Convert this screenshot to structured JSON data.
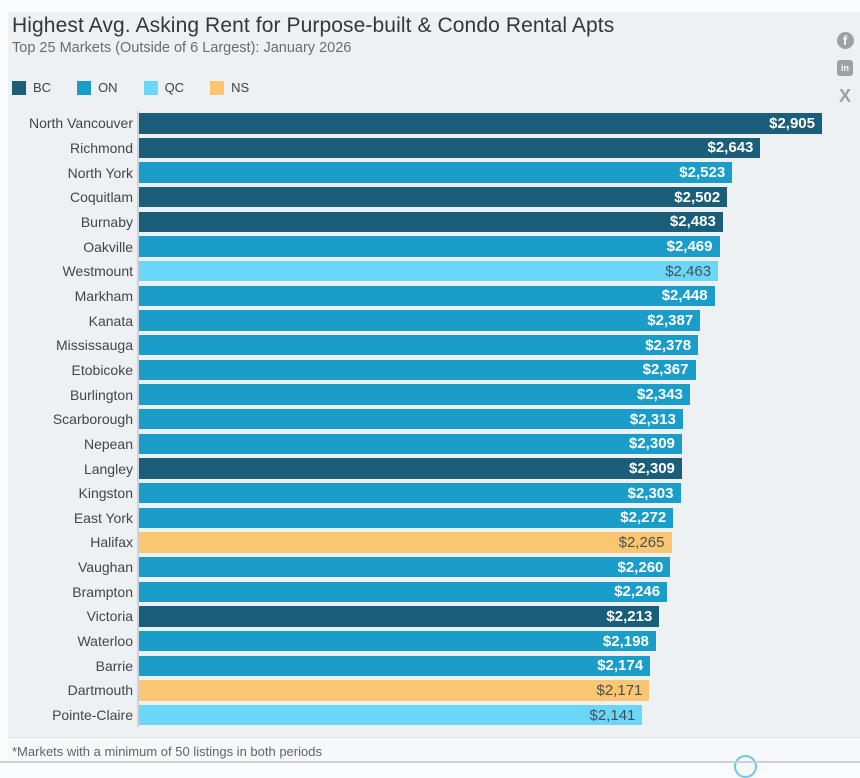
{
  "header": {
    "title": "Highest Avg. Asking Rent for Purpose-built & Condo Rental Apts",
    "subtitle": "Top 25 Markets (Outside of 6 Largest): January 2026"
  },
  "legend": [
    {
      "label": "BC",
      "color": "#1a5e79"
    },
    {
      "label": "ON",
      "color": "#1b9dca"
    },
    {
      "label": "QC",
      "color": "#6bd7f8"
    },
    {
      "label": "NS",
      "color": "#fac672"
    }
  ],
  "social": {
    "facebook": "f",
    "linkedin": "in",
    "x": "X"
  },
  "footnote": "*Markets with a minimum of 50 listings in both periods",
  "chart_data": {
    "type": "bar",
    "orientation": "horizontal",
    "title": "Highest Avg. Asking Rent for Purpose-built & Condo Rental Apts",
    "subtitle": "Top 25 Markets (Outside of 6 Largest): January 2026",
    "legend_entries": [
      "BC",
      "ON",
      "QC",
      "NS"
    ],
    "legend_position": "top-left",
    "grid": false,
    "xlim": [
      0,
      2905
    ],
    "categories": [
      "North Vancouver",
      "Richmond",
      "North York",
      "Coquitlam",
      "Burnaby",
      "Oakville",
      "Westmount",
      "Markham",
      "Kanata",
      "Mississauga",
      "Etobicoke",
      "Burlington",
      "Scarborough",
      "Nepean",
      "Langley",
      "Kingston",
      "East York",
      "Halifax",
      "Vaughan",
      "Brampton",
      "Victoria",
      "Waterloo",
      "Barrie",
      "Dartmouth",
      "Pointe-Claire"
    ],
    "values": [
      2905,
      2643,
      2523,
      2502,
      2483,
      2469,
      2463,
      2448,
      2387,
      2378,
      2367,
      2343,
      2313,
      2309,
      2309,
      2303,
      2272,
      2265,
      2260,
      2246,
      2213,
      2198,
      2174,
      2171,
      2141
    ],
    "value_labels": [
      "$2,905",
      "$2,643",
      "$2,523",
      "$2,502",
      "$2,483",
      "$2,469",
      "$2,463",
      "$2,448",
      "$2,387",
      "$2,378",
      "$2,367",
      "$2,343",
      "$2,313",
      "$2,309",
      "$2,309",
      "$2,303",
      "$2,272",
      "$2,265",
      "$2,260",
      "$2,246",
      "$2,213",
      "$2,198",
      "$2,174",
      "$2,171",
      "$2,141"
    ],
    "provinces": [
      "BC",
      "BC",
      "ON",
      "BC",
      "BC",
      "ON",
      "QC",
      "ON",
      "ON",
      "ON",
      "ON",
      "ON",
      "ON",
      "ON",
      "BC",
      "ON",
      "ON",
      "NS",
      "ON",
      "ON",
      "BC",
      "ON",
      "ON",
      "NS",
      "QC"
    ],
    "colors": {
      "BC": "#1a5e79",
      "ON": "#1b9dca",
      "QC": "#6bd7f8",
      "NS": "#fac672"
    },
    "dark_text_provinces": [
      "QC",
      "NS"
    ]
  }
}
